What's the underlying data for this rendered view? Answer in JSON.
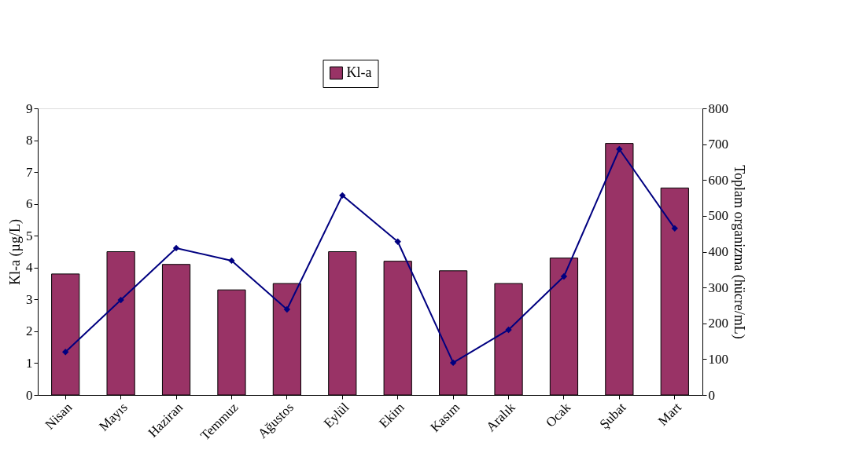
{
  "chart_data": {
    "type": "bar",
    "ylabel": "Kl-a (µg/L)",
    "y2label": "Toplam organizma (hücre/mL)",
    "categories": [
      "Nisan",
      "Mayıs",
      "Haziran",
      "Temmuz",
      "Ağustos",
      "Eylül",
      "Ekim",
      "Kasım",
      "Aralık",
      "Ocak",
      "Şubat",
      "Mart"
    ],
    "series": [
      {
        "name": "Kl-a",
        "color": "#993366",
        "values": [
          3.8,
          4.5,
          4.1,
          3.3,
          3.5,
          4.5,
          4.2,
          3.9,
          3.5,
          4.3,
          7.9,
          6.5
        ]
      },
      {
        "type": "line",
        "axis": "y2",
        "color": "#000080",
        "marker": "diamond",
        "values": [
          120,
          265,
          410,
          375,
          239,
          557,
          428,
          90,
          182,
          331,
          686,
          465
        ]
      }
    ],
    "ylim": [
      0,
      9
    ],
    "yticks": [
      0,
      1,
      2,
      3,
      4,
      5,
      6,
      7,
      8,
      9
    ],
    "y2lim": [
      0,
      800
    ],
    "y2ticks": [
      0,
      100,
      200,
      300,
      400,
      500,
      600,
      700,
      800
    ],
    "legend": "top",
    "grid": false
  }
}
